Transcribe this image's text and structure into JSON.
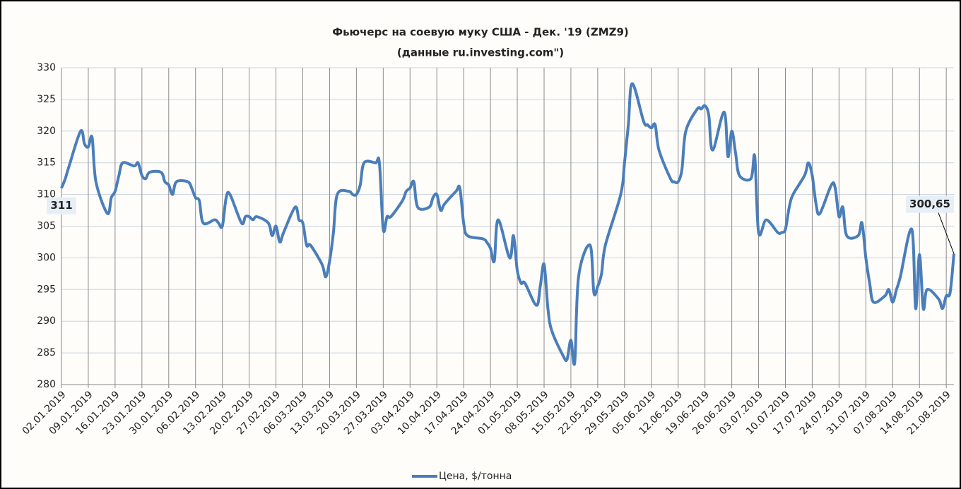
{
  "chart_data": {
    "type": "line",
    "title": "Фьючерс на соевую муку США - Дек. '19 (ZMZ9)",
    "subtitle": "(данные ru.investing.com\")",
    "x": [
      "02.01.2019",
      "03.01.2019",
      "04.01.2019",
      "07.01.2019",
      "08.01.2019",
      "09.01.2019",
      "10.01.2019",
      "11.01.2019",
      "14.01.2019",
      "15.01.2019",
      "16.01.2019",
      "17.01.2019",
      "18.01.2019",
      "21.01.2019",
      "22.01.2019",
      "23.01.2019",
      "24.01.2019",
      "25.01.2019",
      "28.01.2019",
      "29.01.2019",
      "30.01.2019",
      "31.01.2019",
      "01.02.2019",
      "04.02.2019",
      "05.02.2019",
      "06.02.2019",
      "07.02.2019",
      "08.02.2019",
      "11.02.2019",
      "12.02.2019",
      "13.02.2019",
      "14.02.2019",
      "15.02.2019",
      "18.02.2019",
      "19.02.2019",
      "20.02.2019",
      "21.02.2019",
      "22.02.2019",
      "25.02.2019",
      "26.02.2019",
      "27.02.2019",
      "28.02.2019",
      "01.03.2019",
      "04.03.2019",
      "05.03.2019",
      "06.03.2019",
      "07.03.2019",
      "08.03.2019",
      "11.03.2019",
      "12.03.2019",
      "13.03.2019",
      "14.03.2019",
      "15.03.2019",
      "18.03.2019",
      "19.03.2019",
      "20.03.2019",
      "21.03.2019",
      "22.03.2019",
      "25.03.2019",
      "26.03.2019",
      "27.03.2019",
      "28.03.2019",
      "29.03.2019",
      "01.04.2019",
      "02.04.2019",
      "03.04.2019",
      "04.04.2019",
      "05.04.2019",
      "08.04.2019",
      "09.04.2019",
      "10.04.2019",
      "11.04.2019",
      "12.04.2019",
      "15.04.2019",
      "16.04.2019",
      "17.04.2019",
      "18.04.2019",
      "22.04.2019",
      "23.04.2019",
      "24.04.2019",
      "25.04.2019",
      "26.04.2019",
      "29.04.2019",
      "30.04.2019",
      "01.05.2019",
      "02.05.2019",
      "03.05.2019",
      "06.05.2019",
      "07.05.2019",
      "08.05.2019",
      "09.05.2019",
      "10.05.2019",
      "13.05.2019",
      "14.05.2019",
      "15.05.2019",
      "16.05.2019",
      "17.05.2019",
      "20.05.2019",
      "21.05.2019",
      "22.05.2019",
      "23.05.2019",
      "24.05.2019",
      "28.05.2019",
      "29.05.2019",
      "30.05.2019",
      "31.05.2019",
      "03.06.2019",
      "04.06.2019",
      "05.06.2019",
      "06.06.2019",
      "07.06.2019",
      "10.06.2019",
      "11.06.2019",
      "12.06.2019",
      "13.06.2019",
      "14.06.2019",
      "17.06.2019",
      "18.06.2019",
      "19.06.2019",
      "20.06.2019",
      "21.06.2019",
      "24.06.2019",
      "25.06.2019",
      "26.06.2019",
      "27.06.2019",
      "28.06.2019",
      "01.07.2019",
      "02.07.2019",
      "03.07.2019",
      "05.07.2019",
      "08.07.2019",
      "09.07.2019",
      "10.07.2019",
      "11.07.2019",
      "12.07.2019",
      "15.07.2019",
      "16.07.2019",
      "17.07.2019",
      "18.07.2019",
      "19.07.2019",
      "22.07.2019",
      "23.07.2019",
      "24.07.2019",
      "25.07.2019",
      "26.07.2019",
      "29.07.2019",
      "30.07.2019",
      "31.07.2019",
      "01.08.2019",
      "02.08.2019",
      "05.08.2019",
      "06.08.2019",
      "07.08.2019",
      "08.08.2019",
      "09.08.2019",
      "12.08.2019",
      "13.08.2019",
      "14.08.2019",
      "15.08.2019",
      "16.08.2019",
      "19.08.2019",
      "20.08.2019",
      "21.08.2019",
      "22.08.2019",
      "23.08.2019"
    ],
    "series": [
      {
        "name": "Цена, $/тонна",
        "color": "#4a7ebb",
        "values": [
          311,
          312.5,
          314.5,
          320,
          318,
          317.5,
          319,
          312,
          307,
          309.5,
          310.5,
          313,
          315,
          314.5,
          315,
          313,
          312.5,
          313.5,
          313.5,
          312,
          311.5,
          310,
          312,
          312,
          311,
          309.5,
          309,
          305.5,
          306,
          305.5,
          305,
          309.5,
          310,
          305.5,
          306.5,
          306.5,
          306,
          306.5,
          305.5,
          303.5,
          305,
          302.5,
          304,
          308,
          306,
          305.5,
          302,
          302,
          299,
          297,
          299.5,
          304,
          310,
          310.5,
          310,
          310,
          311.5,
          315,
          315,
          315,
          304.5,
          306.5,
          306.5,
          309,
          310.5,
          311,
          312,
          308,
          308,
          309.5,
          310,
          307.5,
          308.5,
          310.5,
          311,
          305.5,
          303.5,
          303,
          302.5,
          301.5,
          299.5,
          306,
          300,
          303.5,
          298,
          296,
          296,
          292.5,
          295.5,
          299,
          292,
          288.5,
          284.5,
          284,
          287,
          283.5,
          297,
          302,
          294.5,
          295.5,
          297.5,
          302,
          310,
          315,
          321,
          327.5,
          321.5,
          321,
          320.5,
          321,
          317,
          312.5,
          312,
          312,
          314,
          320,
          323.5,
          323.5,
          324,
          322.5,
          317,
          323,
          316,
          320,
          316.5,
          313,
          312.5,
          316,
          304,
          306,
          304,
          304,
          304.5,
          308,
          310,
          313,
          315,
          313,
          308.5,
          307,
          311.5,
          311,
          306.5,
          308,
          303.5,
          303.5,
          305.5,
          300,
          296,
          293,
          294,
          295,
          293,
          295,
          297,
          304.5,
          292,
          300.5,
          292,
          295,
          293.5,
          292,
          294,
          294.5,
          300.65
        ],
        "value_labels": [
          "311",
          null,
          null,
          null,
          null,
          null,
          null,
          null,
          null,
          null,
          null,
          null,
          null,
          null,
          null,
          null,
          null,
          null,
          null,
          null,
          null,
          null,
          null,
          null,
          null,
          null,
          null,
          null,
          null,
          null,
          null,
          null,
          null,
          null,
          null,
          null,
          null,
          null,
          null,
          null,
          null,
          null,
          null,
          null,
          null,
          null,
          null,
          null,
          null,
          null,
          null,
          null,
          null,
          null,
          null,
          null,
          null,
          null,
          null,
          null,
          null,
          null,
          null,
          null,
          null,
          null,
          null,
          null,
          null,
          null,
          null,
          null,
          null,
          null,
          null,
          null,
          null,
          null,
          null,
          null,
          null,
          null,
          null,
          null,
          null,
          null,
          null,
          null,
          null,
          null,
          null,
          null,
          null,
          null,
          null,
          null,
          null,
          null,
          null,
          null,
          null,
          null,
          null,
          null,
          null,
          null,
          null,
          null,
          null,
          null,
          null,
          null,
          null,
          null,
          null,
          null,
          null,
          null,
          null,
          null,
          null,
          null,
          null,
          null,
          null,
          null,
          null,
          null,
          null,
          null,
          null,
          null,
          null,
          null,
          null,
          null,
          null,
          null,
          null,
          null,
          null,
          null,
          null,
          null,
          null,
          null,
          null,
          null,
          null,
          null,
          null,
          null,
          null,
          null,
          null,
          null,
          null,
          null,
          null,
          null,
          null,
          null,
          null,
          null,
          "300,65"
        ]
      }
    ],
    "xlim": [
      "02.01.2019",
      "23.08.2019"
    ],
    "xticks": [
      "02.01.2019",
      "09.01.2019",
      "16.01.2019",
      "23.01.2019",
      "30.01.2019",
      "06.02.2019",
      "13.02.2019",
      "20.02.2019",
      "27.02.2019",
      "06.03.2019",
      "13.03.2019",
      "20.03.2019",
      "27.03.2019",
      "03.04.2019",
      "10.04.2019",
      "17.04.2019",
      "24.04.2019",
      "01.05.2019",
      "08.05.2019",
      "15.05.2019",
      "22.05.2019",
      "29.05.2019",
      "05.06.2019",
      "12.06.2019",
      "19.06.2019",
      "26.06.2019",
      "03.07.2019",
      "10.07.2019",
      "17.07.2019",
      "24.07.2019",
      "31.07.2019",
      "07.08.2019",
      "14.08.2019",
      "21.08.2019"
    ],
    "ylim": [
      280,
      330
    ],
    "yticks": [
      280,
      285,
      290,
      295,
      300,
      305,
      310,
      315,
      320,
      325,
      330
    ],
    "grid": true,
    "legend": "bottom"
  }
}
